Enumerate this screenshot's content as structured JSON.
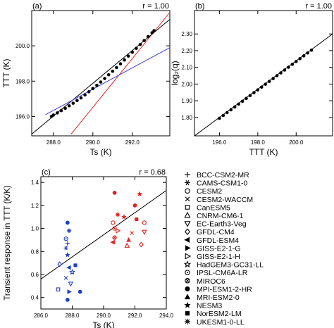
{
  "colors": {
    "red": "#e02020",
    "blue": "#1e3ec8",
    "black": "#000000",
    "fit_blue": "#3a3ad8"
  },
  "chart_data": [
    {
      "panel": "(a)",
      "type": "scatter",
      "r_label": "r = 1.00",
      "xlabel": "Ts (K)",
      "ylabel": "TTT (K)",
      "xlim": [
        286.9,
        293.9
      ],
      "ylim": [
        194.9,
        202.0
      ],
      "xticks": [
        "288.0",
        "290.0",
        "292.0"
      ],
      "yticks": [
        "196.0",
        "198.0",
        "200.0"
      ],
      "x": [
        287.9,
        288.0,
        288.2,
        288.4,
        288.6,
        288.8,
        289.0,
        289.2,
        289.4,
        289.6,
        289.8,
        290.0,
        290.2,
        290.4,
        290.6,
        290.8,
        291.0,
        291.2,
        291.4,
        291.6,
        291.8,
        292.0,
        292.2,
        292.4,
        292.6,
        292.8,
        293.0,
        293.1
      ],
      "y": [
        196.0,
        196.08,
        196.2,
        196.33,
        196.46,
        196.6,
        196.75,
        196.9,
        197.05,
        197.22,
        197.4,
        197.58,
        197.76,
        197.95,
        198.15,
        198.36,
        198.56,
        198.77,
        198.98,
        199.2,
        199.42,
        199.64,
        199.86,
        200.08,
        200.3,
        200.52,
        200.74,
        200.86
      ],
      "lines": [
        {
          "color": "black",
          "points": [
            [
              286.9,
              195.0
            ],
            [
              293.9,
              201.5
            ]
          ]
        },
        {
          "color": "red",
          "points": [
            [
              288.9,
              195.0
            ],
            [
              293.9,
              201.9
            ]
          ]
        },
        {
          "color": "fit_blue",
          "points": [
            [
              287.6,
              196.1
            ],
            [
              293.9,
              199.9
            ]
          ]
        }
      ]
    },
    {
      "panel": "(b)",
      "type": "scatter",
      "r_label": "r = 1.00",
      "xlabel": "TTT (K)",
      "ylabel": "log₂(q)",
      "xlim": [
        194.7,
        201.9
      ],
      "ylim": [
        1.69,
        2.44
      ],
      "xticks": [
        "196.0",
        "198.0",
        "200.0"
      ],
      "yticks": [
        "1.80",
        "1.90",
        "2.00",
        "2.10",
        "2.20",
        "2.30"
      ],
      "x": [
        196.0,
        196.2,
        196.4,
        196.6,
        196.8,
        197.0,
        197.2,
        197.4,
        197.6,
        197.8,
        198.0,
        198.2,
        198.4,
        198.6,
        198.8,
        199.0,
        199.2,
        199.4,
        199.6,
        199.8,
        200.0,
        200.2,
        200.4,
        200.6,
        200.8
      ],
      "y": [
        1.795,
        1.812,
        1.829,
        1.846,
        1.863,
        1.88,
        1.897,
        1.914,
        1.931,
        1.948,
        1.965,
        1.982,
        1.999,
        2.016,
        2.033,
        2.05,
        2.067,
        2.084,
        2.101,
        2.118,
        2.135,
        2.152,
        2.169,
        2.186,
        2.203
      ],
      "lines": [
        {
          "color": "black",
          "points": [
            [
              194.7,
              1.69
            ],
            [
              201.9,
              2.3
            ]
          ]
        }
      ]
    },
    {
      "panel": "(c)",
      "type": "scatter",
      "r_label": "r = 0.68",
      "xlabel": "Ts (K)",
      "ylabel": "Transient response in TTT (K/K)",
      "xlim": [
        286.0,
        294.0
      ],
      "ylim": [
        0.3,
        1.45
      ],
      "xticks": [
        "286.0",
        "288.0",
        "290.0",
        "292.0",
        "294.0"
      ],
      "yticks": [
        "0.4",
        "0.6",
        "0.8",
        "1.0",
        "1.2",
        "1.4"
      ],
      "line": [
        [
          286.0,
          0.56
        ],
        [
          294.0,
          1.33
        ]
      ],
      "points": [
        {
          "x": 287.7,
          "y": 1.05,
          "c": "blue",
          "m": "MPI-ESM1-2-HR"
        },
        {
          "x": 287.8,
          "y": 0.98,
          "c": "blue",
          "m": "UKESM1-0-LL"
        },
        {
          "x": 287.6,
          "y": 0.91,
          "c": "blue",
          "m": "IPSL-CM6A-LR"
        },
        {
          "x": 287.7,
          "y": 0.87,
          "c": "blue",
          "m": "BCC-CSM2-MR"
        },
        {
          "x": 287.6,
          "y": 0.83,
          "c": "blue",
          "m": "CAMS-CSM1-0"
        },
        {
          "x": 287.7,
          "y": 0.77,
          "c": "blue",
          "m": "NESM3"
        },
        {
          "x": 287.2,
          "y": 0.69,
          "c": "blue",
          "m": "GFDL-CM4"
        },
        {
          "x": 287.8,
          "y": 0.66,
          "c": "blue",
          "m": "GFDL-ESM4"
        },
        {
          "x": 288.2,
          "y": 0.68,
          "c": "blue",
          "m": "NorESM2-LM"
        },
        {
          "x": 288.0,
          "y": 0.62,
          "c": "blue",
          "m": "HadGEM3-GC31-LL"
        },
        {
          "x": 287.6,
          "y": 0.57,
          "c": "blue",
          "m": "CESM2-WACCM"
        },
        {
          "x": 287.9,
          "y": 0.52,
          "c": "blue",
          "m": "EC-Earth3-Veg"
        },
        {
          "x": 287.1,
          "y": 0.47,
          "c": "blue",
          "m": "CanESM5"
        },
        {
          "x": 287.8,
          "y": 0.45,
          "c": "blue",
          "m": "GISS-E2-1-G"
        },
        {
          "x": 288.5,
          "y": 0.45,
          "c": "blue",
          "m": "MPI-ESM1-2-HR"
        },
        {
          "x": 287.7,
          "y": 0.38,
          "c": "blue",
          "m": "MPI-ESM1-2-HR"
        },
        {
          "x": 290.7,
          "y": 1.31,
          "c": "red",
          "m": "MPI-ESM1-2-HR"
        },
        {
          "x": 292.3,
          "y": 1.3,
          "c": "red",
          "m": "NESM3"
        },
        {
          "x": 292.0,
          "y": 1.2,
          "c": "red",
          "m": "MPI-ESM1-2-HR"
        },
        {
          "x": 290.9,
          "y": 1.12,
          "c": "red",
          "m": "UKESM1-0-LL"
        },
        {
          "x": 291.3,
          "y": 1.1,
          "c": "red",
          "m": "NESM3"
        },
        {
          "x": 290.6,
          "y": 1.05,
          "c": "red",
          "m": "CESM2"
        },
        {
          "x": 292.1,
          "y": 1.08,
          "c": "red",
          "m": "NorESM2-LM"
        },
        {
          "x": 292.6,
          "y": 1.05,
          "c": "red",
          "m": "CESM2"
        },
        {
          "x": 290.7,
          "y": 1.0,
          "c": "red",
          "m": "IPSL-CM6A-LR"
        },
        {
          "x": 290.9,
          "y": 0.98,
          "c": "red",
          "m": "GISS-E2-1-H"
        },
        {
          "x": 291.8,
          "y": 0.96,
          "c": "red",
          "m": "CESM2-WACCM"
        },
        {
          "x": 292.6,
          "y": 0.97,
          "c": "red",
          "m": "EC-Earth3-Veg"
        },
        {
          "x": 290.7,
          "y": 0.92,
          "c": "red",
          "m": "MIROC6"
        },
        {
          "x": 291.6,
          "y": 0.9,
          "c": "red",
          "m": "MRI-ESM2-0"
        },
        {
          "x": 290.6,
          "y": 0.88,
          "c": "red",
          "m": "GFDL-ESM4"
        },
        {
          "x": 291.5,
          "y": 0.85,
          "c": "red",
          "m": "CNRM-CM6-1"
        },
        {
          "x": 292.4,
          "y": 0.86,
          "c": "red",
          "m": "GFDL-CM4"
        }
      ]
    }
  ],
  "legend": {
    "entries": [
      {
        "label": "BCC-CSM2-MR",
        "marker": "plus"
      },
      {
        "label": "CAMS-CSM1-0",
        "marker": "asterisk"
      },
      {
        "label": "CESM2",
        "marker": "circle-open"
      },
      {
        "label": "CESM2-WACCM",
        "marker": "cross"
      },
      {
        "label": "CanESM5",
        "marker": "square-open"
      },
      {
        "label": "CNRM-CM6-1",
        "marker": "triangle-open"
      },
      {
        "label": "EC-Earth3-Veg",
        "marker": "triangle-down-open"
      },
      {
        "label": "GFDL-CM4",
        "marker": "diamond-open"
      },
      {
        "label": "GFDL-ESM4",
        "marker": "triangle-left-filled"
      },
      {
        "label": "GISS-E2-1-G",
        "marker": "triangle-right-filled"
      },
      {
        "label": "GISS-E2-1-H",
        "marker": "triangle-right-open"
      },
      {
        "label": "HadGEM3-GC31-LL",
        "marker": "star-open"
      },
      {
        "label": "IPSL-CM6A-LR",
        "marker": "circle-dot"
      },
      {
        "label": "MIROC6",
        "marker": "circle-x"
      },
      {
        "label": "MPI-ESM1-2-HR",
        "marker": "circle-filled"
      },
      {
        "label": "MRI-ESM2-0",
        "marker": "triangle-filled"
      },
      {
        "label": "NESM3",
        "marker": "star-filled"
      },
      {
        "label": "NorESM2-LM",
        "marker": "square-filled"
      },
      {
        "label": "UKESM1-0-LL",
        "marker": "snowflake"
      }
    ]
  }
}
